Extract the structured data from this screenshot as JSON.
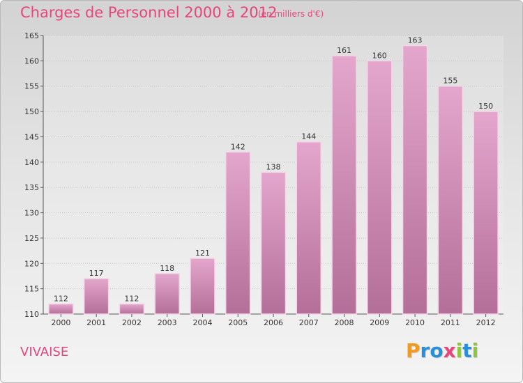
{
  "header": {
    "title": "Charges de Personnel 2000 à 2012",
    "unit": "(en milliers d'€)"
  },
  "footer": {
    "commune": "VIVAISE",
    "logo_letters": [
      "P",
      "r",
      "o",
      "x",
      "i",
      "t",
      "i"
    ],
    "logo_colors": [
      "#f29a1d",
      "#2b8fd6",
      "#2b8fd6",
      "#e8457c",
      "#8cc63f",
      "#2b8fd6",
      "#8cc63f"
    ]
  },
  "chart_data": {
    "type": "bar",
    "title": "Charges de Personnel 2000 à 2012",
    "subtitle": "(en milliers d'€)",
    "categories": [
      "2000",
      "2001",
      "2002",
      "2003",
      "2004",
      "2005",
      "2006",
      "2007",
      "2008",
      "2009",
      "2010",
      "2011",
      "2012"
    ],
    "values": [
      112,
      117,
      112,
      118,
      121,
      142,
      138,
      144,
      161,
      160,
      163,
      155,
      150
    ],
    "ylim": [
      110,
      165
    ],
    "yticks": [
      110,
      115,
      120,
      125,
      130,
      135,
      140,
      145,
      150,
      155,
      160,
      165
    ],
    "grid": true,
    "bar_color_top": "#e4a6cc",
    "bar_color_bottom": "#b36f98",
    "bar_edge_color": "#f3d6e7"
  }
}
